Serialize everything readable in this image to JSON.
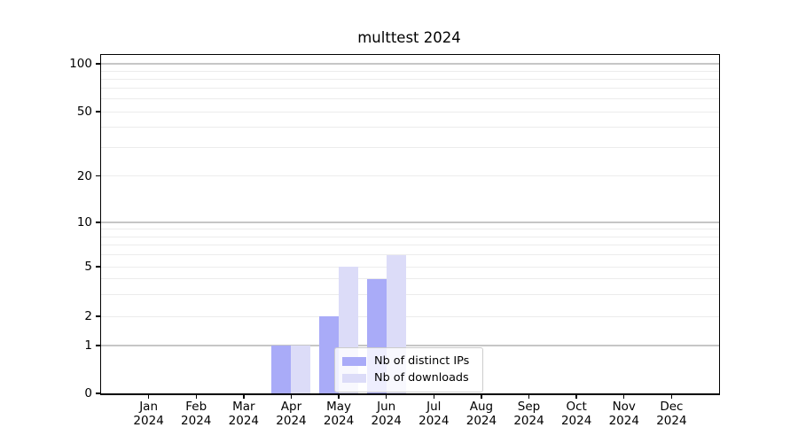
{
  "chart_data": {
    "type": "bar",
    "title": "multtest 2024",
    "categories": [
      "Jan 2024",
      "Feb 2024",
      "Mar 2024",
      "Apr 2024",
      "May 2024",
      "Jun 2024",
      "Jul 2024",
      "Aug 2024",
      "Sep 2024",
      "Oct 2024",
      "Nov 2024",
      "Dec 2024"
    ],
    "x_tick_months": [
      "Jan",
      "Feb",
      "Mar",
      "Apr",
      "May",
      "Jun",
      "Jul",
      "Aug",
      "Sep",
      "Oct",
      "Nov",
      "Dec"
    ],
    "x_tick_year": "2024",
    "series": [
      {
        "name": "Nb of distinct IPs",
        "color": "#a9abf8",
        "values": [
          0,
          0,
          0,
          1,
          2,
          4,
          0,
          0,
          0,
          0,
          0,
          0
        ]
      },
      {
        "name": "Nb of downloads",
        "color": "#dcdcf8",
        "values": [
          0,
          0,
          0,
          1,
          5,
          6,
          0,
          0,
          0,
          0,
          0,
          0
        ]
      }
    ],
    "y_axis": {
      "scale": "symlog",
      "ylim": [
        0,
        100
      ],
      "tick_values": [
        0,
        1,
        2,
        5,
        10,
        20,
        50,
        100
      ],
      "tick_labels": [
        "0",
        "1",
        "2",
        "5",
        "10",
        "20",
        "50",
        "100"
      ],
      "major_gridlines": [
        1,
        10,
        100
      ],
      "minor_gridlines": [
        2,
        3,
        4,
        5,
        6,
        7,
        8,
        9,
        20,
        30,
        40,
        50,
        60,
        70,
        80,
        90
      ],
      "grid": "on"
    },
    "legend": {
      "position": "lower center",
      "entries": [
        "Nb of distinct IPs",
        "Nb of downloads"
      ]
    },
    "xlabel": "",
    "ylabel": ""
  }
}
